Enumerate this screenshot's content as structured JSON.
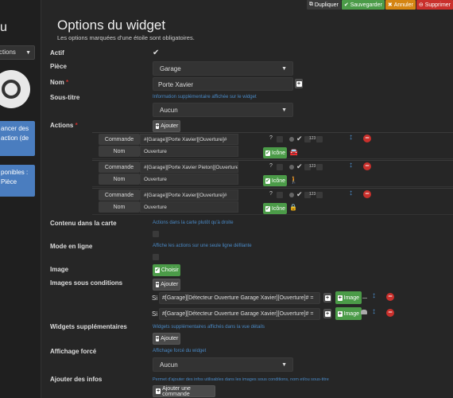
{
  "topbar": {
    "duplicate": "Dupliquer",
    "save": "Sauvegarder",
    "cancel": "Annuler",
    "delete": "Supprimer",
    "colors": {
      "duplicate": "#3a3a3a",
      "save": "#4b9b48",
      "cancel": "#d58512",
      "delete": "#c9302c"
    }
  },
  "sidebar": {
    "title": "u",
    "select_value": "ctions",
    "box1": "ancer des\naction (de",
    "box2": "ponibles :\nPièce"
  },
  "page": {
    "title": "Options du widget",
    "subtitle": "Les options marquées d'une étoile sont obligatoires."
  },
  "labels": {
    "actif": "Actif",
    "piece": "Pièce",
    "nom": "Nom",
    "sous_titre": "Sous-titre",
    "actions": "Actions",
    "contenu": "Contenu dans la carte",
    "mode": "Mode en ligne",
    "image": "Image",
    "images_cond": "Images sous conditions",
    "widgets_supp": "Widgets supplémentaires",
    "affichage_force": "Affichage forcé",
    "ajouter_infos": "Ajouter des infos"
  },
  "hints": {
    "sous_titre": "Information supplémentaire affichée sur le widget",
    "contenu": "Actions dans la carte plutôt qu'à droite",
    "mode": "Affiche les actions sur une seule ligne défilante",
    "widgets_supp": "Widgets supplémentaires affichés dans la vue détails",
    "affichage_force": "Affichage forcé du widget",
    "ajouter_infos": "Permet d'ajouter des infos utilisables dans les images sous conditions, nom et/ou sous-titre"
  },
  "fields": {
    "actif_check": "✔",
    "piece_value": "Garage",
    "nom_value": "Porte Xavier",
    "sous_titre_value": "Aucun",
    "affichage_force_value": "Aucun"
  },
  "buttons": {
    "ajouter": "Ajouter",
    "choisir": "Choisir",
    "icone": "Icône",
    "image": "Image",
    "ajouter_commande": "Ajouter une commande"
  },
  "actions": [
    {
      "cmd_label": "Commande",
      "cmd_value": "#[Garage][Porte Xavier][Ouverture]#",
      "nom_label": "Nom",
      "nom_value": "Ouverture",
      "icon": "car-icon",
      "icon_glyph": "🚘"
    },
    {
      "cmd_label": "Commande",
      "cmd_value": "#[Garage][Porte Xavier Pieton][Ouverture]",
      "nom_label": "Nom",
      "nom_value": "Ouverture",
      "icon": "walker-icon",
      "icon_glyph": "🚶"
    },
    {
      "cmd_label": "Commande",
      "cmd_value": "#[Garage][Porte Xavier][Ouverture]#",
      "nom_label": "Nom",
      "nom_value": "Ouverture",
      "icon": "lock-icon",
      "icon_glyph": "🔒"
    }
  ],
  "action_meta": {
    "help": "?",
    "badge": "123"
  },
  "conditions": [
    {
      "si": "Si",
      "expr": "#[Garage][Détecteur Ouverture Garage Xavier][Ouverture]# ="
    },
    {
      "si": "Si",
      "expr": "#[Garage][Détecteur Ouverture Garage Xavier][Ouverture]# ="
    }
  ]
}
